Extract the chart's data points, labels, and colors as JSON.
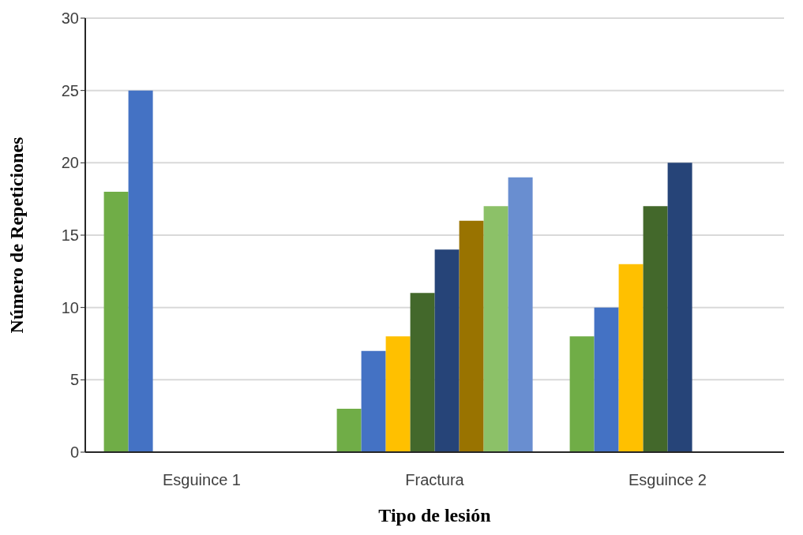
{
  "chart_data": {
    "type": "bar",
    "xlabel": "Tipo de lesión",
    "ylabel": "Número de Repeticiones",
    "categories": [
      "Esguince 1",
      "Fractura",
      "Esguince 2"
    ],
    "series": [
      {
        "color": "#70ad47",
        "values": [
          18,
          3,
          8
        ]
      },
      {
        "color": "#4472c4",
        "values": [
          25,
          7,
          10
        ]
      },
      {
        "color": "#ffc000",
        "values": [
          null,
          8,
          13
        ]
      },
      {
        "color": "#43682b",
        "values": [
          null,
          11,
          17
        ]
      },
      {
        "color": "#264478",
        "values": [
          null,
          14,
          20
        ]
      },
      {
        "color": "#997300",
        "values": [
          null,
          16,
          null
        ]
      },
      {
        "color": "#8cc168",
        "values": [
          null,
          17,
          null
        ]
      },
      {
        "color": "#698ed0",
        "values": [
          null,
          19,
          null
        ]
      }
    ],
    "ylim": [
      0,
      30
    ],
    "yticks": [
      0,
      5,
      10,
      15,
      20,
      25,
      30
    ],
    "grid": "y",
    "legend": false
  }
}
